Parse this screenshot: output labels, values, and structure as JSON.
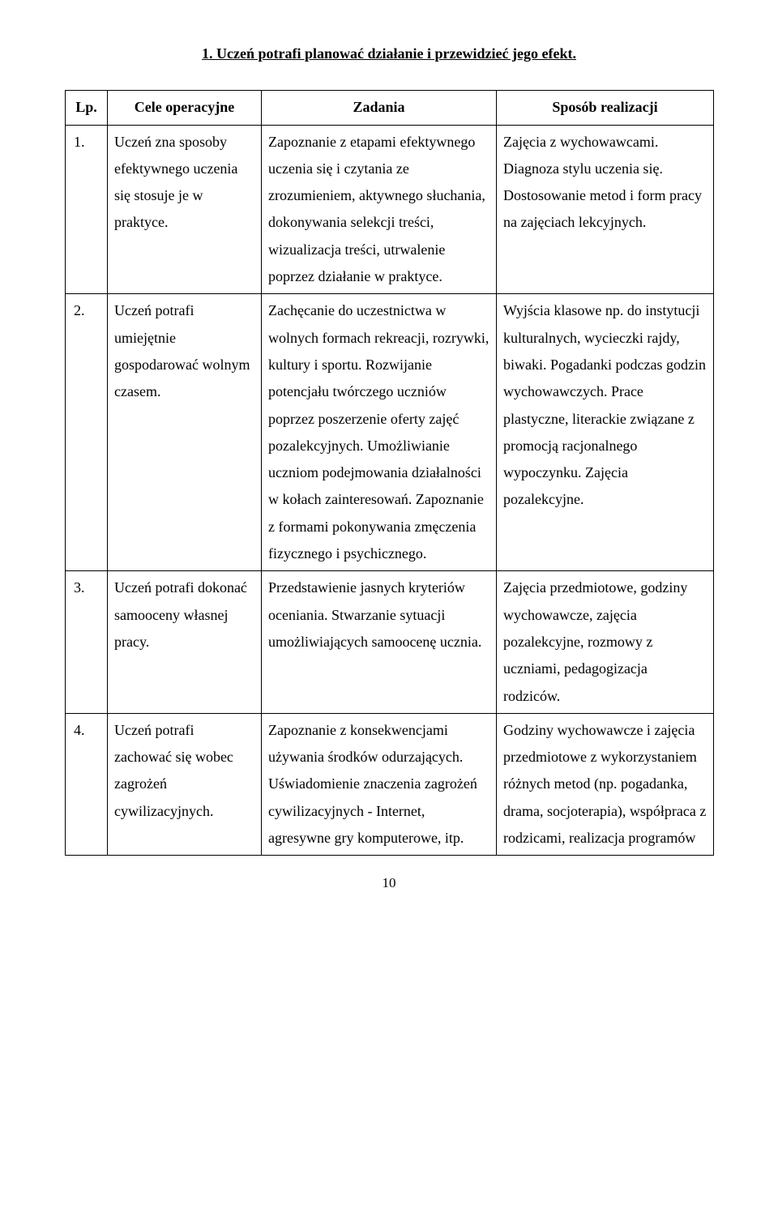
{
  "heading": "1. Uczeń potrafi planować działanie i przewidzieć jego efekt.",
  "headers": {
    "lp": "Lp.",
    "cele": "Cele operacyjne",
    "zadania": "Zadania",
    "sposob": "Sposób realizacji"
  },
  "rows": [
    {
      "lp": "1.",
      "cele": "Uczeń zna sposoby efektywnego uczenia się stosuje je w praktyce.",
      "zadania": "Zapoznanie z etapami efektywnego uczenia się i czytania ze zrozumieniem, aktywnego słuchania, dokonywania selekcji treści, wizualizacja treści, utrwalenie poprzez działanie w praktyce.",
      "sposob": "Zajęcia z wychowawcami. Diagnoza stylu uczenia się. Dostosowanie metod i form pracy na zajęciach lekcyjnych."
    },
    {
      "lp": "2.",
      "cele": "Uczeń potrafi umiejętnie gospodarować wolnym czasem.",
      "zadania": "Zachęcanie do uczestnictwa w wolnych formach rekreacji, rozrywki, kultury i sportu. Rozwijanie potencjału twórczego uczniów poprzez poszerzenie oferty zajęć pozalekcyjnych. Umożliwianie uczniom podejmowania działalności w kołach zainteresowań. Zapoznanie z formami pokonywania zmęczenia fizycznego i psychicznego.",
      "sposob": "Wyjścia klasowe np. do instytucji kulturalnych, wycieczki rajdy, biwaki. Pogadanki podczas godzin wychowawczych. Prace plastyczne, literackie związane z promocją racjonalnego wypoczynku. Zajęcia pozalekcyjne."
    },
    {
      "lp": "3.",
      "cele": "Uczeń potrafi dokonać samooceny własnej pracy.",
      "zadania": "Przedstawienie jasnych kryteriów oceniania. Stwarzanie sytuacji umożliwiających samoocenę ucznia.",
      "sposob": "Zajęcia przedmiotowe, godziny wychowawcze, zajęcia pozalekcyjne, rozmowy z uczniami, pedagogizacja rodziców."
    },
    {
      "lp": "4.",
      "cele": "Uczeń potrafi zachować się wobec zagrożeń cywilizacyjnych.",
      "zadania": "Zapoznanie z konsekwencjami używania środków odurzających. Uświadomienie znaczenia zagrożeń cywilizacyjnych - Internet, agresywne gry komputerowe, itp.",
      "sposob": "Godziny wychowawcze i zajęcia przedmiotowe z wykorzystaniem różnych metod (np. pogadanka, drama, socjoterapia), współpraca z rodzicami, realizacja programów"
    }
  ],
  "page_number": "10"
}
